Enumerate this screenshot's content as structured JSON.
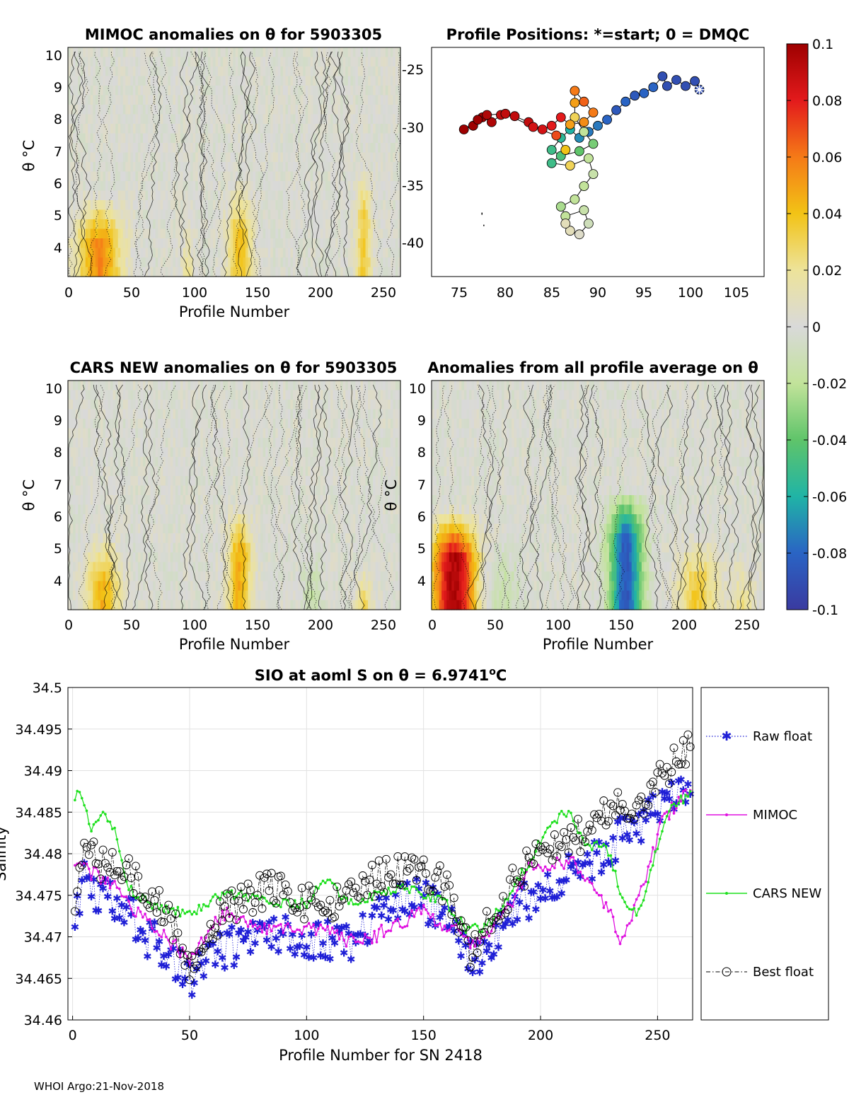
{
  "figure": {
    "footer": "WHOI Argo:21-Nov-2018",
    "colorbar": {
      "ticks": [
        "0.1",
        "0.08",
        "0.06",
        "0.04",
        "0.02",
        "0",
        "-0.02",
        "-0.04",
        "-0.06",
        "-0.08",
        "-0.1"
      ],
      "range": [
        -0.1,
        0.1
      ]
    }
  },
  "chart_data": [
    {
      "id": "mimoc_anom",
      "type": "heatmap",
      "title": "MIMOC anomalies on θ  for 5903305",
      "xlabel": "Profile Number",
      "ylabel": "θ °C",
      "xlim": [
        0,
        265
      ],
      "ylim": [
        3.1,
        10.4
      ],
      "xticks": [
        "0",
        "50",
        "100",
        "150",
        "200",
        "250"
      ],
      "yticks": [
        "10",
        "9",
        "8",
        "7",
        "6",
        "5",
        "4"
      ],
      "features": [
        {
          "center": 25,
          "width": 22,
          "tmax": 5.8,
          "amp": 0.055
        },
        {
          "center": 137,
          "width": 12,
          "tmax": 6.2,
          "amp": 0.04
        },
        {
          "center": 236,
          "width": 8,
          "tmax": 6.6,
          "amp": 0.035
        },
        {
          "center": 95,
          "width": 6,
          "tmax": 5.0,
          "amp": 0.02
        }
      ]
    },
    {
      "id": "positions",
      "type": "scatter",
      "title": "Profile Positions: *=start; 0 = DMQC",
      "xlim": [
        72,
        108
      ],
      "ylim": [
        -43,
        -24
      ],
      "xticks": [
        "75",
        "80",
        "85",
        "90",
        "95",
        "100",
        "105"
      ],
      "yticks": [
        "-25",
        "-30",
        "-35",
        "-40"
      ],
      "track": [
        [
          101,
          -27.5
        ],
        [
          100.5,
          -26.8
        ],
        [
          99.5,
          -27.2
        ],
        [
          98.5,
          -26.7
        ],
        [
          97.5,
          -27.2
        ],
        [
          97,
          -26.4
        ],
        [
          96,
          -27.3
        ],
        [
          95,
          -27.8
        ],
        [
          94,
          -28.0
        ],
        [
          93,
          -28.5
        ],
        [
          92,
          -29.2
        ],
        [
          91,
          -30.0
        ],
        [
          90,
          -30.5
        ],
        [
          89,
          -31.0
        ],
        [
          88,
          -31.5
        ],
        [
          87,
          -30.8
        ],
        [
          86,
          -31.5
        ],
        [
          85,
          -32.5
        ],
        [
          86,
          -33.0
        ],
        [
          88,
          -32.6
        ],
        [
          89.5,
          -32.0
        ],
        [
          88.5,
          -31.0
        ],
        [
          87.5,
          -29.8
        ],
        [
          87.5,
          -28.6
        ],
        [
          87.5,
          -27.6
        ],
        [
          88.5,
          -28.5
        ],
        [
          89.5,
          -29.4
        ],
        [
          88.5,
          -30.2
        ],
        [
          87,
          -30.4
        ],
        [
          86,
          -29.8
        ],
        [
          85,
          -30.5
        ],
        [
          84,
          -30.8
        ],
        [
          82.5,
          -30.2
        ],
        [
          81,
          -29.7
        ],
        [
          79.5,
          -29.6
        ],
        [
          78.5,
          -30.2
        ],
        [
          77.5,
          -29.8
        ],
        [
          76.5,
          -30.5
        ],
        [
          75.5,
          -30.8
        ],
        [
          77,
          -30.0
        ],
        [
          78,
          -29.6
        ],
        [
          80,
          -29.5
        ],
        [
          83,
          -30.6
        ],
        [
          85.5,
          -31.3
        ],
        [
          86.5,
          -32.5
        ],
        [
          85,
          -33.6
        ],
        [
          87,
          -33.8
        ],
        [
          89,
          -33.2
        ],
        [
          89.5,
          -34.5
        ],
        [
          88.5,
          -35.5
        ],
        [
          87.5,
          -36.6
        ],
        [
          86,
          -37.2
        ],
        [
          86.5,
          -38.0
        ],
        [
          88.5,
          -37.5
        ],
        [
          89,
          -38.6
        ],
        [
          88,
          -39.5
        ],
        [
          87,
          -39.2
        ],
        [
          86.5,
          -38.6
        ]
      ],
      "values": [
        -0.09,
        -0.09,
        -0.09,
        -0.09,
        -0.09,
        -0.09,
        -0.08,
        -0.08,
        -0.085,
        -0.08,
        -0.085,
        -0.08,
        -0.075,
        -0.075,
        -0.07,
        -0.06,
        -0.055,
        -0.05,
        -0.045,
        -0.04,
        -0.035,
        -0.02,
        0.03,
        0.05,
        0.06,
        0.065,
        0.06,
        0.055,
        0.05,
        0.08,
        0.08,
        0.085,
        0.09,
        0.09,
        0.09,
        0.095,
        0.1,
        0.1,
        0.1,
        0.1,
        0.095,
        0.09,
        0.085,
        0.07,
        0.04,
        -0.05,
        0.03,
        -0.02,
        -0.015,
        -0.02,
        -0.02,
        -0.025,
        -0.02,
        -0.015,
        -0.01,
        0.005,
        0.01,
        0.01
      ]
    },
    {
      "id": "cars_anom",
      "type": "heatmap",
      "title": "CARS NEW anomalies on θ for 5903305",
      "xlabel": "Profile Number",
      "ylabel": "θ °C",
      "xlim": [
        0,
        265
      ],
      "ylim": [
        3.1,
        10.4
      ],
      "xticks": [
        "0",
        "50",
        "100",
        "150",
        "200",
        "250"
      ],
      "yticks": [
        "10",
        "9",
        "8",
        "7",
        "6",
        "5",
        "4"
      ],
      "features": [
        {
          "center": 28,
          "width": 16,
          "tmax": 5.6,
          "amp": 0.045
        },
        {
          "center": 137,
          "width": 12,
          "tmax": 6.6,
          "amp": 0.045
        },
        {
          "center": 236,
          "width": 8,
          "tmax": 4.6,
          "amp": 0.035
        },
        {
          "center": 195,
          "width": 10,
          "tmax": 5.2,
          "amp": -0.015
        }
      ]
    },
    {
      "id": "profile_avg_anom",
      "type": "heatmap",
      "title": "Anomalies from all profile average on θ",
      "xlabel": "Profile Number",
      "ylabel": "θ °C",
      "xlim": [
        0,
        265
      ],
      "ylim": [
        3.1,
        10.4
      ],
      "xticks": [
        "0",
        "50",
        "100",
        "150",
        "200",
        "250"
      ],
      "yticks": [
        "10",
        "9",
        "8",
        "7",
        "6",
        "5",
        "4"
      ],
      "features": [
        {
          "center": 18,
          "width": 22,
          "tmax": 6.4,
          "amp": 0.095
        },
        {
          "center": 55,
          "width": 18,
          "tmax": 5.6,
          "amp": -0.015
        },
        {
          "center": 155,
          "width": 16,
          "tmax": 7.0,
          "amp": -0.085
        },
        {
          "center": 212,
          "width": 20,
          "tmax": 5.6,
          "amp": 0.035
        },
        {
          "center": 248,
          "width": 14,
          "tmax": 5.0,
          "amp": 0.02
        }
      ]
    },
    {
      "id": "salinity",
      "type": "line",
      "title": "SIO at aoml S on θ = 6.9741",
      "title_sup": "o",
      "title_unit": "C",
      "xlabel": "Profile Number for SN 2418",
      "ylabel": "Salinity",
      "xlim": [
        -2,
        265
      ],
      "ylim": [
        34.46,
        34.5
      ],
      "xticks": [
        0,
        50,
        100,
        150,
        200,
        250
      ],
      "xtick_labels": [
        "0",
        "50",
        "100",
        "150",
        "200",
        "250"
      ],
      "yticks": [
        34.5,
        34.495,
        34.49,
        34.485,
        34.48,
        34.475,
        34.47,
        34.465,
        34.46
      ],
      "ytick_labels": [
        "34.5",
        "34.495",
        "34.49",
        "34.485",
        "34.48",
        "34.475",
        "34.47",
        "34.465",
        "34.46"
      ],
      "anchors": {
        "raw": [
          [
            0,
            34.47
          ],
          [
            5,
            34.477
          ],
          [
            12,
            34.475
          ],
          [
            22,
            34.474
          ],
          [
            32,
            34.47
          ],
          [
            42,
            34.468
          ],
          [
            50,
            34.465
          ],
          [
            58,
            34.468
          ],
          [
            70,
            34.469
          ],
          [
            85,
            34.471
          ],
          [
            100,
            34.47
          ],
          [
            115,
            34.469
          ],
          [
            130,
            34.472
          ],
          [
            145,
            34.475
          ],
          [
            160,
            34.473
          ],
          [
            170,
            34.467
          ],
          [
            185,
            34.472
          ],
          [
            200,
            34.476
          ],
          [
            215,
            34.478
          ],
          [
            230,
            34.481
          ],
          [
            245,
            34.484
          ],
          [
            264,
            34.489
          ]
        ],
        "mimoc": [
          [
            0,
            34.479
          ],
          [
            6,
            34.478
          ],
          [
            14,
            34.477
          ],
          [
            24,
            34.474
          ],
          [
            34,
            34.471
          ],
          [
            44,
            34.469
          ],
          [
            50,
            34.467
          ],
          [
            56,
            34.47
          ],
          [
            66,
            34.473
          ],
          [
            78,
            34.471
          ],
          [
            92,
            34.471
          ],
          [
            108,
            34.471
          ],
          [
            122,
            34.469
          ],
          [
            135,
            34.471
          ],
          [
            150,
            34.473
          ],
          [
            162,
            34.471
          ],
          [
            172,
            34.469
          ],
          [
            185,
            34.473
          ],
          [
            195,
            34.478
          ],
          [
            205,
            34.479
          ],
          [
            215,
            34.479
          ],
          [
            222,
            34.476
          ],
          [
            228,
            34.474
          ],
          [
            234,
            34.47
          ],
          [
            240,
            34.473
          ],
          [
            246,
            34.478
          ],
          [
            252,
            34.484
          ],
          [
            264,
            34.488
          ]
        ],
        "cars": [
          [
            0,
            34.487
          ],
          [
            3,
            34.487
          ],
          [
            8,
            34.483
          ],
          [
            14,
            34.485
          ],
          [
            18,
            34.483
          ],
          [
            24,
            34.476
          ],
          [
            32,
            34.474
          ],
          [
            42,
            34.473
          ],
          [
            52,
            34.473
          ],
          [
            62,
            34.475
          ],
          [
            72,
            34.475
          ],
          [
            85,
            34.474
          ],
          [
            100,
            34.474
          ],
          [
            108,
            34.477
          ],
          [
            118,
            34.474
          ],
          [
            130,
            34.475
          ],
          [
            140,
            34.476
          ],
          [
            152,
            34.475
          ],
          [
            160,
            34.474
          ],
          [
            168,
            34.471
          ],
          [
            176,
            34.471
          ],
          [
            184,
            34.474
          ],
          [
            195,
            34.479
          ],
          [
            205,
            34.484
          ],
          [
            212,
            34.485
          ],
          [
            220,
            34.481
          ],
          [
            228,
            34.481
          ],
          [
            236,
            34.474
          ],
          [
            242,
            34.473
          ],
          [
            248,
            34.479
          ],
          [
            256,
            34.486
          ],
          [
            264,
            34.487
          ]
        ],
        "best": [
          [
            0,
            34.473
          ],
          [
            5,
            34.481
          ],
          [
            12,
            34.479
          ],
          [
            22,
            34.478
          ],
          [
            32,
            34.475
          ],
          [
            42,
            34.472
          ],
          [
            50,
            34.467
          ],
          [
            58,
            34.471
          ],
          [
            70,
            34.474
          ],
          [
            85,
            34.476
          ],
          [
            100,
            34.474
          ],
          [
            115,
            34.474
          ],
          [
            130,
            34.477
          ],
          [
            145,
            34.478
          ],
          [
            160,
            34.476
          ],
          [
            170,
            34.468
          ],
          [
            185,
            34.475
          ],
          [
            200,
            34.481
          ],
          [
            215,
            34.482
          ],
          [
            230,
            34.485
          ],
          [
            245,
            34.487
          ],
          [
            264,
            34.493
          ]
        ]
      },
      "noise": {
        "raw": 0.0025,
        "mimoc": 0.0009,
        "cars": 0.0006,
        "best": 0.0022
      },
      "legend": [
        {
          "label": "Raw float",
          "color": "#1f1fd6"
        },
        {
          "label": "MIMOC",
          "color": "#e010e0"
        },
        {
          "label": "CARS NEW",
          "color": "#1ee01e"
        },
        {
          "label": "Best float",
          "color": "#000000"
        }
      ]
    }
  ]
}
